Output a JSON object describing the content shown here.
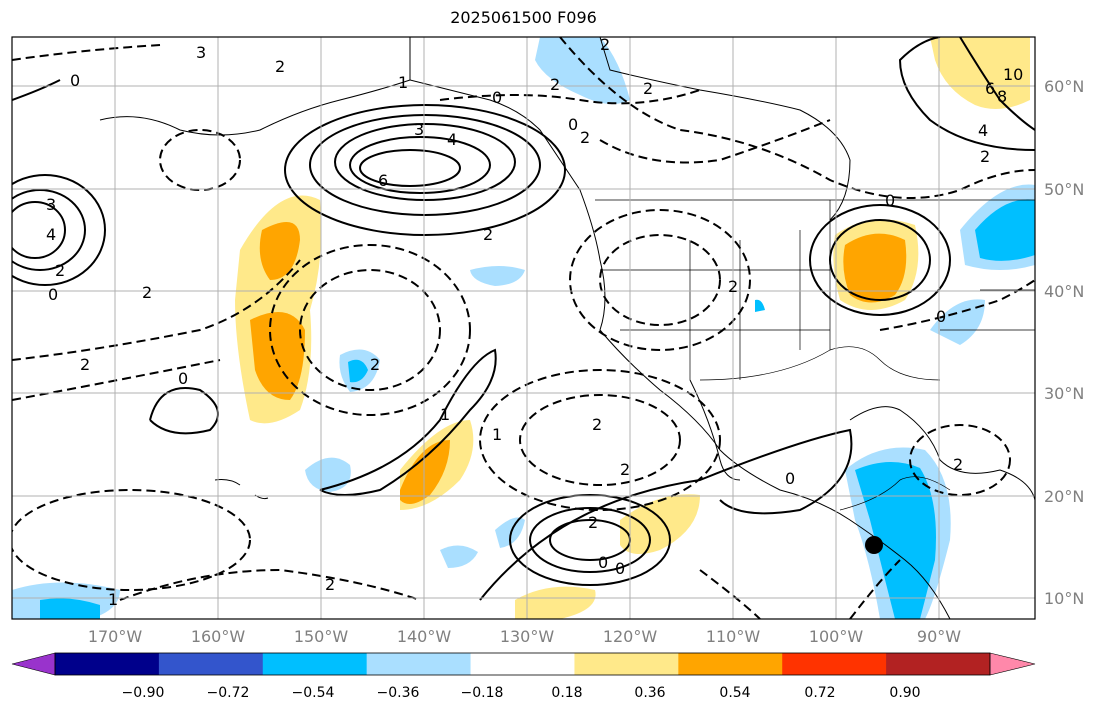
{
  "title": "2025061500 F096",
  "map": {
    "lat_labels": [
      "60°N",
      "50°N",
      "40°N",
      "30°N",
      "20°N",
      "10°N"
    ],
    "lon_labels": [
      "170°W",
      "160°W",
      "150°W",
      "140°W",
      "130°W",
      "120°W",
      "110°W",
      "100°W",
      "90°W"
    ],
    "contour_labels": [
      "3",
      "2",
      "1",
      "0",
      "2",
      "3",
      "4",
      "6",
      "0",
      "2",
      "2",
      "2",
      "0",
      "6",
      "4",
      "8",
      "10",
      "2",
      "3",
      "4",
      "2",
      "0",
      "2",
      "2",
      "0",
      "0",
      "2",
      "2",
      "2",
      "2",
      "1",
      "2",
      "0",
      "1",
      "0",
      "2",
      "2",
      "0",
      "0",
      "2",
      "1"
    ],
    "marker": "station-dot"
  },
  "colorbar": {
    "ticks": [
      "−0.90",
      "−0.72",
      "−0.54",
      "−0.36",
      "−0.18",
      "0.18",
      "0.36",
      "0.54",
      "0.72",
      "0.90"
    ],
    "colors": [
      "#9933cc",
      "#00008b",
      "#3355cc",
      "#00bfff",
      "#aadfff",
      "#ffffff",
      "#ffe98a",
      "#ffa500",
      "#ff3300",
      "#b22222",
      "#ff88aa"
    ]
  }
}
